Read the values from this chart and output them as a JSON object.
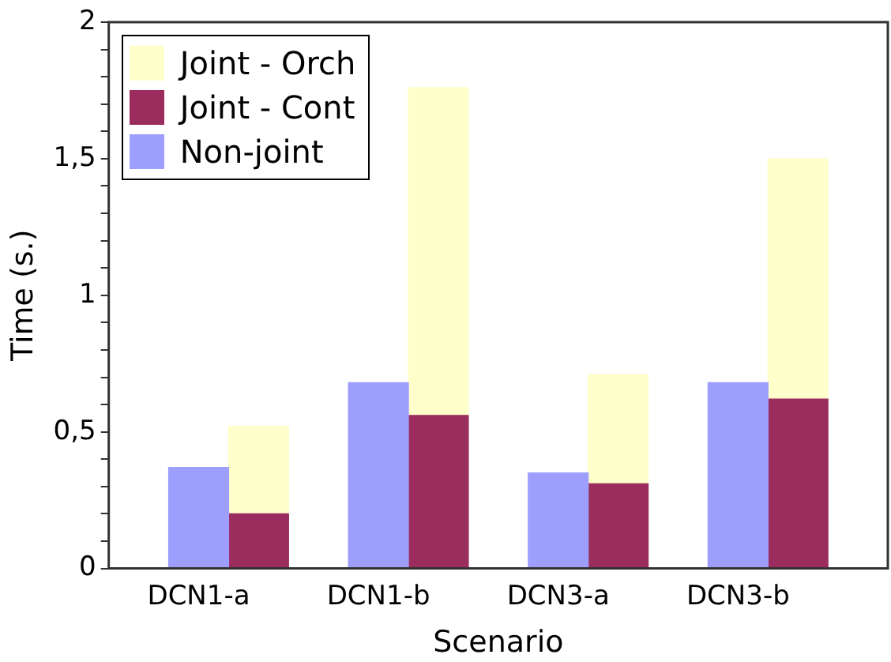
{
  "chart_data": {
    "type": "bar",
    "xlabel": "Scenario",
    "ylabel": "Time (s.)",
    "stacked": true,
    "categories": [
      null,
      "DCN1-a",
      null,
      null,
      "DCN1-b",
      null,
      null,
      "DCN3-a",
      null,
      null,
      "DCN3-b",
      null,
      null
    ],
    "series": [
      {
        "name": "Non-joint",
        "color": "#9e9eff",
        "values": [
          null,
          0.37,
          null,
          null,
          0.68,
          null,
          null,
          0.35,
          null,
          null,
          0.68,
          null,
          null
        ]
      },
      {
        "name": "Joint - Cont",
        "color": "#9b2d5e",
        "values": [
          null,
          null,
          0.2,
          null,
          null,
          0.56,
          null,
          null,
          0.31,
          null,
          null,
          0.62,
          null
        ]
      },
      {
        "name": "Joint - Orch",
        "color": "#ffffcc",
        "values": [
          null,
          null,
          0.32,
          null,
          null,
          1.2,
          null,
          null,
          0.4,
          null,
          null,
          0.88,
          null
        ]
      }
    ],
    "ylim": [
      0,
      2
    ],
    "yticks": [
      {
        "value": 0,
        "label": "0"
      },
      {
        "value": 0.1,
        "label": null
      },
      {
        "value": 0.2,
        "label": null
      },
      {
        "value": 0.3,
        "label": null
      },
      {
        "value": 0.4,
        "label": null
      },
      {
        "value": 0.5,
        "label": "0,5"
      },
      {
        "value": 0.6,
        "label": null
      },
      {
        "value": 0.7,
        "label": null
      },
      {
        "value": 0.8,
        "label": null
      },
      {
        "value": 0.9,
        "label": null
      },
      {
        "value": 1,
        "label": "1"
      },
      {
        "value": 1.1,
        "label": null
      },
      {
        "value": 1.2,
        "label": null
      },
      {
        "value": 1.3,
        "label": null
      },
      {
        "value": 1.4,
        "label": null
      },
      {
        "value": 1.5,
        "label": "1,5"
      },
      {
        "value": 1.6,
        "label": null
      },
      {
        "value": 1.7,
        "label": null
      },
      {
        "value": 1.8,
        "label": null
      },
      {
        "value": 1.9,
        "label": null
      },
      {
        "value": 2,
        "label": "2"
      }
    ],
    "grid": false,
    "legend": "top left"
  }
}
